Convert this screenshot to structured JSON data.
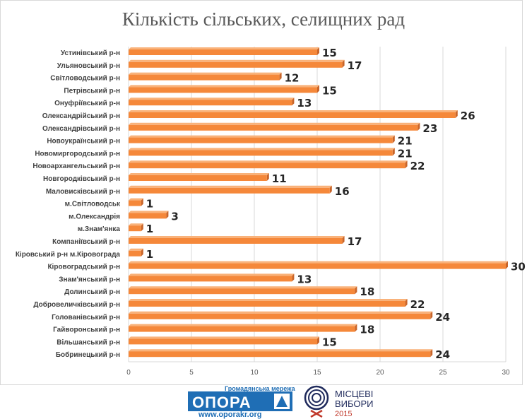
{
  "chart_data": {
    "type": "bar",
    "orientation": "horizontal",
    "title": "Кількість сільських, селищних рад",
    "categories": [
      "Устинівський р-н",
      "Ульяновський р-н",
      "Світловодський р-н",
      "Петрівський р-н",
      "Онуфріївський р-н",
      "Олександрійський р-н",
      "Олександрівський р-н",
      "Новоукраїнський р-н",
      "Новомиргородський р-н",
      "Новоархангельський р-н",
      "Новгородківський р-н",
      "Маловисківський р-н",
      "м.Світловодськ",
      "м.Олександрія",
      "м.Знам'янка",
      "Компаніївський р-н",
      "Кіровський р-н м.Кіровограда",
      "Кіровоградський р-н",
      "Знам'янський р-н",
      "Долинський р-н",
      "Добровеличківський р-н",
      "Голованівський р-н",
      "Гайворонський р-н",
      "Вільшанський р-н",
      "Бобринецький р-н"
    ],
    "values": [
      15,
      17,
      12,
      15,
      13,
      26,
      23,
      21,
      21,
      22,
      11,
      16,
      1,
      3,
      1,
      17,
      1,
      30,
      13,
      18,
      22,
      24,
      18,
      15,
      24
    ],
    "xlim": [
      0,
      30
    ],
    "ticks": [
      "0",
      "5",
      "10",
      "15",
      "20",
      "25",
      "30"
    ],
    "grid": true,
    "legend": "none",
    "bar_color": "#f5883a"
  },
  "footer": {
    "opora_tagline": "Громадянська мережа",
    "opora_name": "ОПОРА",
    "opora_url": "www.oporakr.org",
    "elections_line1": "МІСЦЕВІ",
    "elections_line2": "ВИБОРИ",
    "elections_year": "2015"
  }
}
